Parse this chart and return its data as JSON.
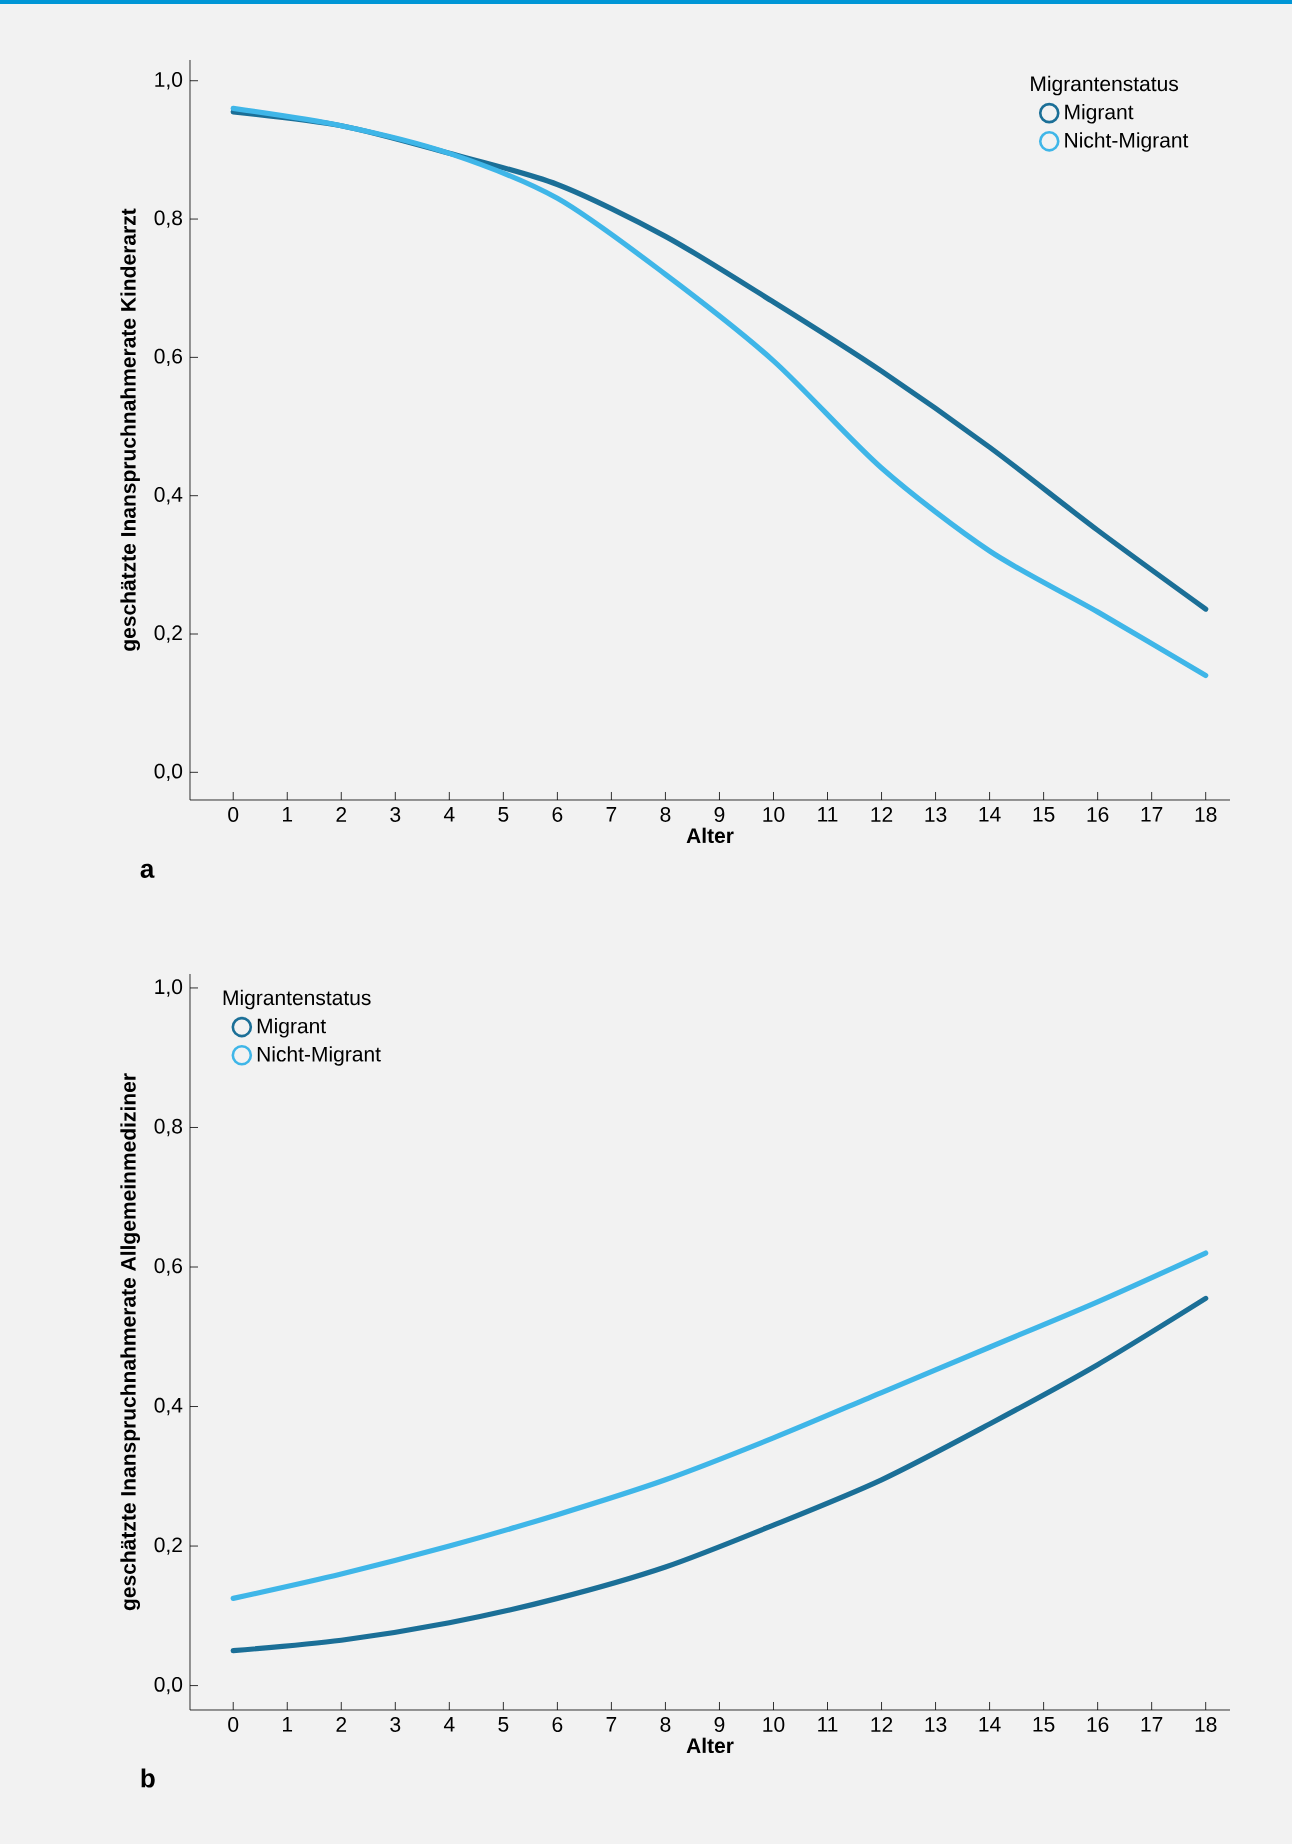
{
  "chart_data": [
    {
      "type": "line",
      "xlabel": "Alter",
      "ylabel": "geschätzte Inanspruchnahmerate Kinderarzt",
      "legend_title": "Migrantenstatus",
      "legend": "top right",
      "annotations": [
        "a"
      ],
      "x": [
        0,
        2,
        4,
        6,
        8,
        10,
        12,
        14,
        16,
        18
      ],
      "xlim": [
        -0.8,
        18.45
      ],
      "ylim": [
        -0.04,
        1.03
      ],
      "xticks": [
        0,
        1,
        2,
        3,
        4,
        5,
        6,
        7,
        8,
        9,
        10,
        11,
        12,
        13,
        14,
        15,
        16,
        17,
        18
      ],
      "yticks": [
        {
          "value": 0,
          "label": "0,0"
        },
        {
          "value": 0.2,
          "label": "0,2"
        },
        {
          "value": 0.4,
          "label": "0,4"
        },
        {
          "value": 0.6,
          "label": "0,6"
        },
        {
          "value": 0.8,
          "label": "0,8"
        },
        {
          "value": 1.0,
          "label": "1,0"
        }
      ],
      "series": [
        {
          "name": "Migrant",
          "color": "#1b6f97",
          "values": [
            0.955,
            0.935,
            0.895,
            0.85,
            0.775,
            0.68,
            0.58,
            0.47,
            0.35,
            0.236
          ]
        },
        {
          "name": "Nicht-Migrant",
          "color": "#3fb6e8",
          "values": [
            0.96,
            0.935,
            0.895,
            0.83,
            0.72,
            0.595,
            0.44,
            0.32,
            0.232,
            0.14
          ]
        }
      ]
    },
    {
      "type": "line",
      "xlabel": "Alter",
      "ylabel": "geschätzte Inanspruchnahmerate Allgemeinmediziner",
      "legend_title": "Migrantenstatus",
      "legend": "top left",
      "annotations": [
        "b"
      ],
      "x": [
        0,
        2,
        4,
        6,
        8,
        10,
        12,
        14,
        16,
        18
      ],
      "xlim": [
        -0.8,
        18.45
      ],
      "ylim": [
        -0.035,
        1.02
      ],
      "xticks": [
        0,
        1,
        2,
        3,
        4,
        5,
        6,
        7,
        8,
        9,
        10,
        11,
        12,
        13,
        14,
        15,
        16,
        17,
        18
      ],
      "yticks": [
        {
          "value": 0,
          "label": "0,0"
        },
        {
          "value": 0.2,
          "label": "0,2"
        },
        {
          "value": 0.4,
          "label": "0,4"
        },
        {
          "value": 0.6,
          "label": "0,6"
        },
        {
          "value": 0.8,
          "label": "0,8"
        },
        {
          "value": 1.0,
          "label": "1,0"
        }
      ],
      "series": [
        {
          "name": "Migrant",
          "color": "#1b6f97",
          "values": [
            0.05,
            0.065,
            0.09,
            0.125,
            0.17,
            0.23,
            0.295,
            0.375,
            0.46,
            0.555
          ]
        },
        {
          "name": "Nicht-Migrant",
          "color": "#3fb6e8",
          "values": [
            0.125,
            0.16,
            0.2,
            0.245,
            0.295,
            0.355,
            0.42,
            0.485,
            0.55,
            0.62
          ]
        }
      ]
    }
  ]
}
